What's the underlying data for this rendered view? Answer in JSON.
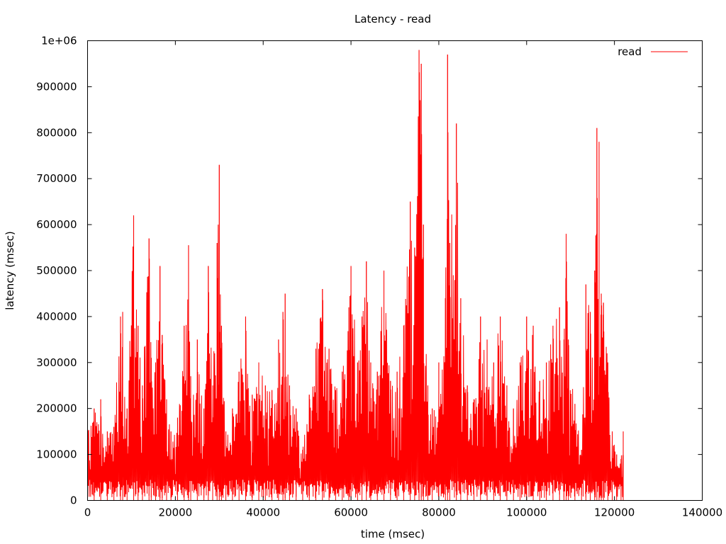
{
  "chart_data": {
    "type": "line",
    "title": "Latency - read",
    "xlabel": "time (msec)",
    "ylabel": "latency (msec)",
    "xlim": [
      0,
      140000
    ],
    "ylim": [
      0,
      1000000
    ],
    "xticks": [
      0,
      20000,
      40000,
      60000,
      80000,
      100000,
      120000,
      140000
    ],
    "xtick_labels": [
      "0",
      "20000",
      "40000",
      "60000",
      "80000",
      "100000",
      "120000",
      "140000"
    ],
    "yticks": [
      0,
      100000,
      200000,
      300000,
      400000,
      500000,
      600000,
      700000,
      800000,
      900000,
      1000000
    ],
    "ytick_labels": [
      "0",
      "100000",
      "200000",
      "300000",
      "400000",
      "500000",
      "600000",
      "700000",
      "800000",
      "900000",
      "1e+06"
    ],
    "grid": false,
    "legend": "top-right",
    "series": [
      {
        "name": "read",
        "color": "#ff0000",
        "x": [
          0,
          1500,
          3000,
          4500,
          6000,
          7500,
          8000,
          9000,
          10500,
          11500,
          12500,
          14000,
          14500,
          15500,
          16500,
          17000,
          18000,
          19000,
          20500,
          22000,
          23000,
          23500,
          25000,
          26500,
          27500,
          28500,
          29500,
          30000,
          30500,
          31500,
          33000,
          34500,
          36000,
          37500,
          39000,
          40500,
          42000,
          43500,
          44500,
          45000,
          46000,
          47500,
          49000,
          50500,
          52000,
          53500,
          55000,
          56500,
          58000,
          59500,
          60000,
          61500,
          62500,
          63500,
          64500,
          66000,
          67500,
          69000,
          70500,
          72000,
          73500,
          74500,
          75500,
          76000,
          76500,
          77500,
          78500,
          80000,
          81500,
          82000,
          82500,
          84000,
          85000,
          86500,
          88000,
          89500,
          91000,
          92500,
          94000,
          95500,
          97000,
          98500,
          100000,
          101500,
          103000,
          104500,
          106000,
          107500,
          108500,
          109000,
          109500,
          111000,
          112500,
          113500,
          114500,
          115500,
          116000,
          116500,
          117000,
          117500,
          118500,
          119500,
          120500,
          121500,
          122000
        ],
        "values": [
          150000,
          200000,
          220000,
          150000,
          160000,
          400000,
          410000,
          200000,
          620000,
          380000,
          250000,
          570000,
          310000,
          300000,
          510000,
          360000,
          220000,
          150000,
          180000,
          380000,
          555000,
          270000,
          350000,
          200000,
          510000,
          250000,
          560000,
          730000,
          380000,
          150000,
          200000,
          280000,
          400000,
          230000,
          300000,
          250000,
          240000,
          350000,
          410000,
          450000,
          250000,
          200000,
          110000,
          230000,
          330000,
          460000,
          330000,
          240000,
          280000,
          420000,
          510000,
          300000,
          400000,
          520000,
          300000,
          280000,
          500000,
          260000,
          280000,
          380000,
          650000,
          550000,
          980000,
          950000,
          600000,
          250000,
          200000,
          300000,
          440000,
          970000,
          560000,
          820000,
          440000,
          250000,
          220000,
          400000,
          350000,
          300000,
          400000,
          250000,
          200000,
          300000,
          400000,
          380000,
          260000,
          300000,
          380000,
          420000,
          350000,
          580000,
          350000,
          210000,
          110000,
          470000,
          410000,
          500000,
          810000,
          780000,
          450000,
          430000,
          300000,
          150000,
          100000,
          90000,
          150000
        ]
      }
    ]
  }
}
